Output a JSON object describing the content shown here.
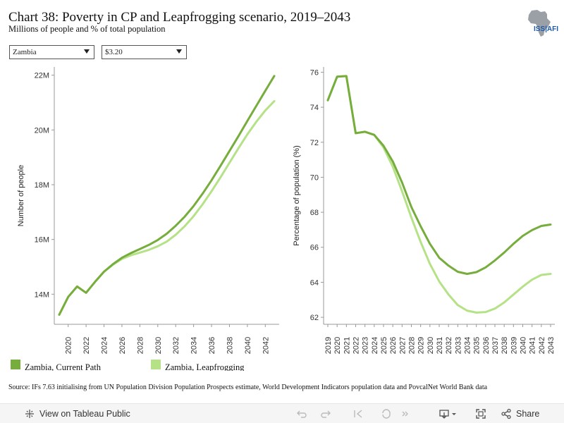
{
  "header": {
    "title": "Chart 38: Poverty in CP and Leapfrogging scenario, 2019–2043",
    "subtitle": "Millions of people and % of total population",
    "logo_text": "ISS|AFI"
  },
  "filters": {
    "country": "Zambia",
    "threshold": "$3.20"
  },
  "colors": {
    "current_path": "#76ad3c",
    "leapfrogging": "#b5e287",
    "axis": "#999999"
  },
  "legend": {
    "current_path": "Zambia, Current Path",
    "leapfrogging": "Zambia, Leapfrogging"
  },
  "source": "Source: IFs 7.63 initialising from UN Population Division Population Prospects estimate, World Development Indicators population data and PovcalNet World Bank data",
  "footer": {
    "view_label": "View on Tableau Public",
    "share_label": "Share"
  },
  "chart_data": [
    {
      "type": "line",
      "title": "",
      "xlabel": "",
      "ylabel": "Number of people",
      "x": [
        2019,
        2020,
        2021,
        2022,
        2023,
        2024,
        2025,
        2026,
        2027,
        2028,
        2029,
        2030,
        2031,
        2032,
        2033,
        2034,
        2035,
        2036,
        2037,
        2038,
        2039,
        2040,
        2041,
        2042,
        2043
      ],
      "xticks": [
        2020,
        2022,
        2024,
        2026,
        2028,
        2030,
        2032,
        2034,
        2036,
        2038,
        2040,
        2042
      ],
      "ylim": [
        12.9,
        22.3
      ],
      "yticks": [
        14,
        16,
        18,
        20,
        22
      ],
      "ytick_labels": [
        "14M",
        "16M",
        "18M",
        "20M",
        "22M"
      ],
      "grid": false,
      "series": [
        {
          "name": "Zambia, Current Path",
          "values": [
            13.25,
            13.9,
            14.28,
            14.05,
            14.45,
            14.82,
            15.1,
            15.33,
            15.5,
            15.65,
            15.8,
            15.98,
            16.21,
            16.5,
            16.83,
            17.22,
            17.67,
            18.16,
            18.69,
            19.23,
            19.77,
            20.33,
            20.88,
            21.43,
            21.97
          ]
        },
        {
          "name": "Zambia, Leapfrogging",
          "values": [
            13.25,
            13.9,
            14.28,
            14.05,
            14.45,
            14.82,
            15.08,
            15.29,
            15.42,
            15.52,
            15.62,
            15.75,
            15.92,
            16.17,
            16.48,
            16.85,
            17.28,
            17.76,
            18.27,
            18.8,
            19.33,
            19.84,
            20.3,
            20.71,
            21.05
          ]
        }
      ]
    },
    {
      "type": "line",
      "title": "",
      "xlabel": "",
      "ylabel": "Percentage of population (%)",
      "x": [
        2019,
        2020,
        2021,
        2022,
        2023,
        2024,
        2025,
        2026,
        2027,
        2028,
        2029,
        2030,
        2031,
        2032,
        2033,
        2034,
        2035,
        2036,
        2037,
        2038,
        2039,
        2040,
        2041,
        2042,
        2043
      ],
      "xticks": [
        2019,
        2020,
        2021,
        2022,
        2023,
        2024,
        2025,
        2026,
        2027,
        2028,
        2029,
        2030,
        2031,
        2032,
        2033,
        2034,
        2035,
        2036,
        2037,
        2038,
        2039,
        2040,
        2041,
        2042,
        2043
      ],
      "ylim": [
        61.6,
        76.3
      ],
      "yticks": [
        62,
        64,
        66,
        68,
        70,
        72,
        74,
        76
      ],
      "ytick_labels": [
        "62",
        "64",
        "66",
        "68",
        "70",
        "72",
        "74",
        "76"
      ],
      "grid": false,
      "series": [
        {
          "name": "Zambia, Current Path",
          "values": [
            74.4,
            75.75,
            75.78,
            72.52,
            72.6,
            72.42,
            71.8,
            70.9,
            69.7,
            68.3,
            67.2,
            66.2,
            65.4,
            64.95,
            64.6,
            64.48,
            64.58,
            64.85,
            65.25,
            65.7,
            66.2,
            66.65,
            66.98,
            67.22,
            67.3
          ]
        },
        {
          "name": "Zambia, Leapfrogging",
          "values": [
            74.4,
            75.75,
            75.78,
            72.52,
            72.6,
            72.42,
            71.7,
            70.6,
            69.2,
            67.7,
            66.3,
            65.05,
            64.05,
            63.3,
            62.7,
            62.38,
            62.27,
            62.3,
            62.5,
            62.85,
            63.3,
            63.75,
            64.15,
            64.42,
            64.48
          ]
        }
      ]
    }
  ]
}
